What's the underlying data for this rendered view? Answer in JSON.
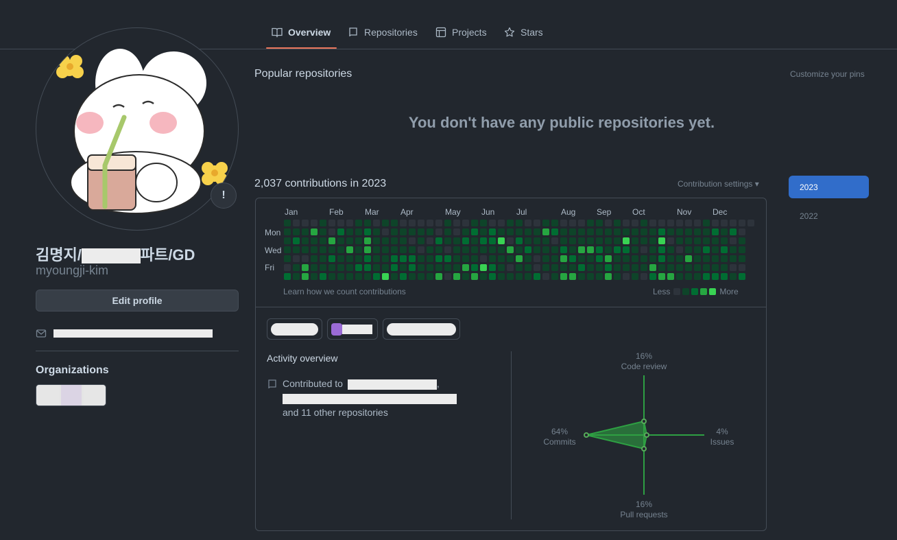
{
  "nav": {
    "tabs": [
      {
        "label": "Overview",
        "icon": "book-icon"
      },
      {
        "label": "Repositories",
        "icon": "repo-icon"
      },
      {
        "label": "Projects",
        "icon": "table-icon"
      },
      {
        "label": "Stars",
        "icon": "star-icon"
      }
    ],
    "active_tab": "Overview",
    "accent": "#ec775c"
  },
  "profile": {
    "name_prefix": "김명지/",
    "name_suffix": "파트/GD",
    "username": "myoungji-kim",
    "edit_label": "Edit profile",
    "status_glyph": "!",
    "organizations_title": "Organizations"
  },
  "main": {
    "popular_title": "Popular repositories",
    "customize_label": "Customize your pins",
    "empty_message": "You don't have any public repositories yet.",
    "contributions_title": "2,037 contributions in 2023",
    "contribution_settings": "Contribution settings ▾",
    "years": [
      "2023",
      "2022"
    ],
    "months": [
      "Jan",
      "Feb",
      "Mar",
      "Apr",
      "May",
      "Jun",
      "Jul",
      "Aug",
      "Sep",
      "Oct",
      "Nov",
      "Dec"
    ],
    "days": [
      "Mon",
      "Wed",
      "Fri"
    ],
    "learn_label": "Learn how we count contributions",
    "legend_less": "Less",
    "legend_more": "More",
    "levels_colors": [
      "#2d333b",
      "#0e4429",
      "#006d32",
      "#26a641",
      "#39d353"
    ],
    "activity_title": "Activity overview",
    "contributed_to": "Contributed to",
    "other_repos": "and 11 other repositories"
  },
  "activity_chart": {
    "code_review": {
      "pct": "16%",
      "label": "Code review"
    },
    "issues": {
      "pct": "4%",
      "label": "Issues"
    },
    "pull_requests": {
      "pct": "16%",
      "label": "Pull requests"
    },
    "commits": {
      "pct": "64%",
      "label": "Commits"
    }
  }
}
